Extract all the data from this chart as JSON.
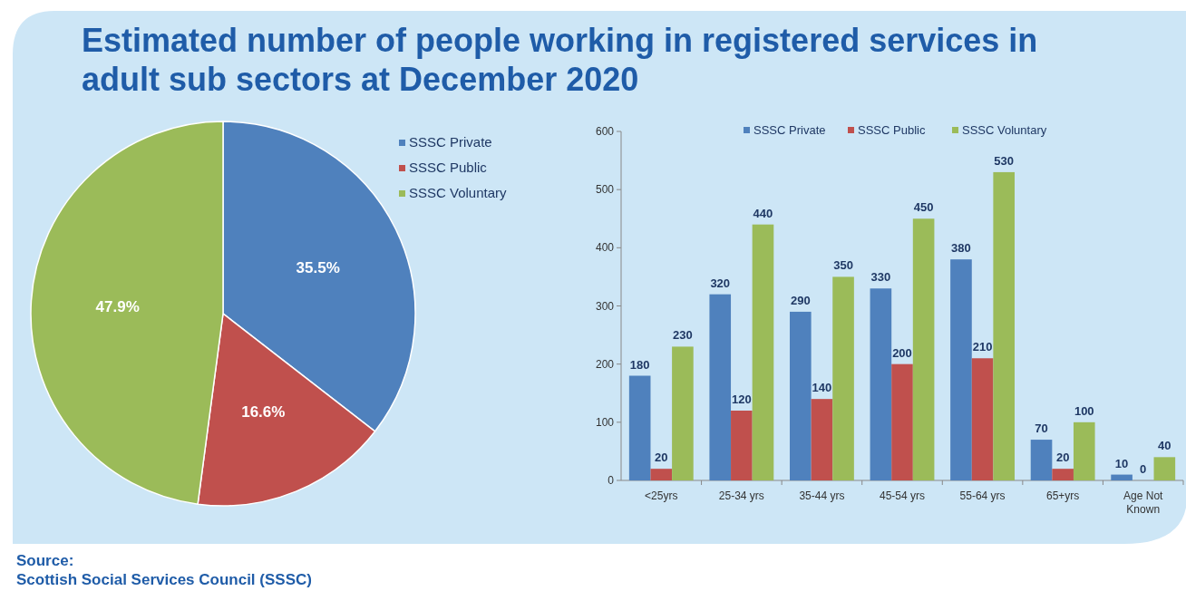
{
  "chart_data": [
    {
      "type": "pie",
      "title": "Estimated number of people working in registered services in adult sub sectors at December 2020",
      "categories": [
        "SSSC Private",
        "SSSC Public",
        "SSSC Voluntary"
      ],
      "values": [
        35.5,
        16.6,
        47.9
      ],
      "colors": [
        "#4f81bd",
        "#c0504d",
        "#9bbb59"
      ],
      "value_labels": [
        "35.5%",
        "16.6%",
        "47.9%"
      ],
      "legend": "right",
      "annotations": [
        "Source:",
        "Scottish Social Services Council (SSSC)"
      ]
    },
    {
      "type": "bar",
      "categories": [
        "<25yrs",
        "25-34 yrs",
        "35-44 yrs",
        "45-54 yrs",
        "55-64 yrs",
        "65+yrs",
        "Age Not Known"
      ],
      "series": [
        {
          "name": "SSSC Private",
          "color": "#4f81bd",
          "values": [
            180,
            320,
            290,
            330,
            380,
            70,
            10
          ]
        },
        {
          "name": "SSSC Public",
          "color": "#c0504d",
          "values": [
            20,
            120,
            140,
            200,
            210,
            20,
            0
          ]
        },
        {
          "name": "SSSC Voluntary",
          "color": "#9bbb59",
          "values": [
            230,
            440,
            350,
            450,
            530,
            100,
            40
          ]
        }
      ],
      "ylim": [
        0,
        600
      ],
      "yticks": [
        0,
        100,
        200,
        300,
        400,
        500,
        600
      ],
      "data_labels": true,
      "legend": "top"
    }
  ]
}
